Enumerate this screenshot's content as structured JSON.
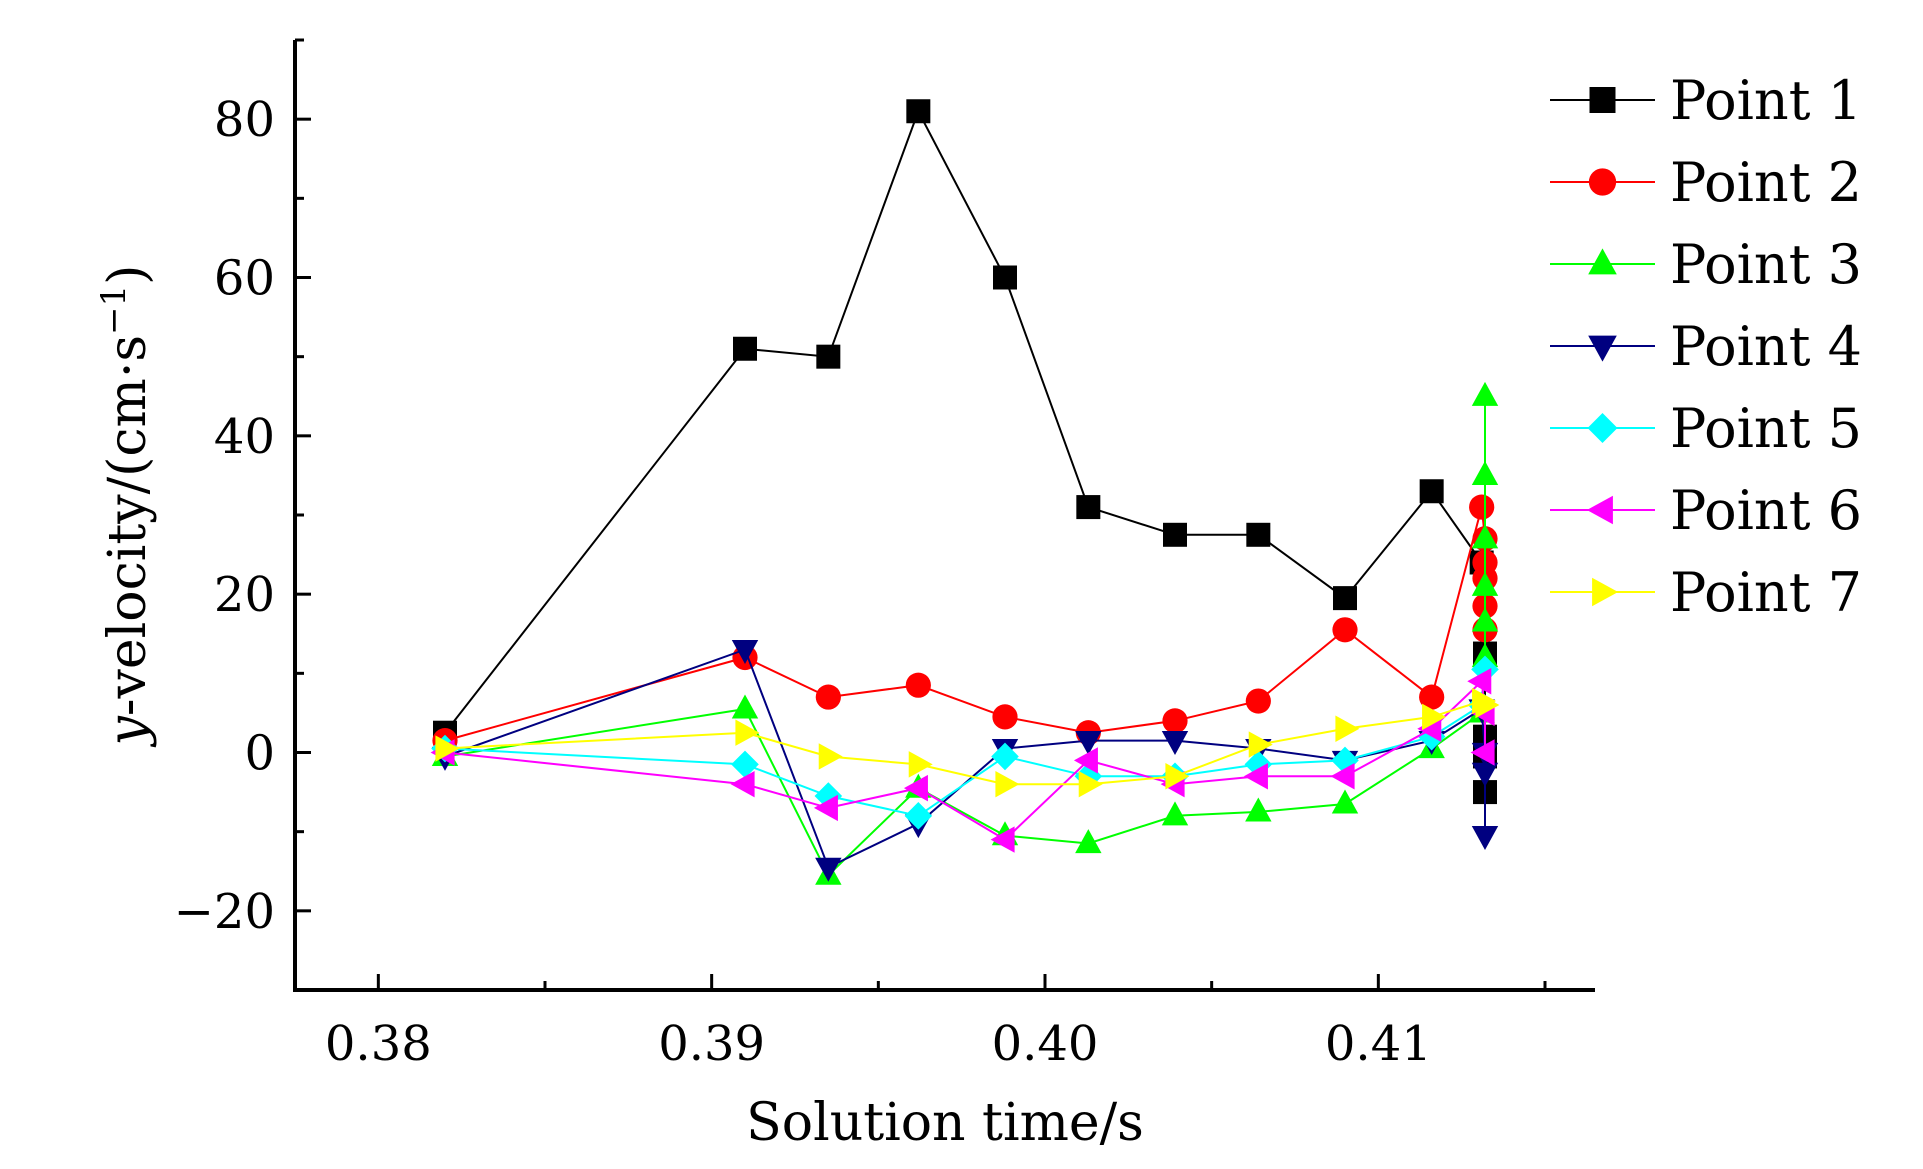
{
  "chart_data": {
    "type": "line",
    "xlabel": "Solution time/s",
    "ylabel": "y-velocity/(cm·s⁻¹)",
    "ylabel_parts": {
      "var": "y",
      "rest": "-velocity/(cm·s",
      "sup": "−1",
      "close": ")"
    },
    "xlim": [
      0.3775,
      0.4165
    ],
    "ylim": [
      -30,
      90
    ],
    "x_ticks": [
      0.38,
      0.39,
      0.4,
      0.41
    ],
    "x_tick_labels": [
      "0.38",
      "0.39",
      "0.40",
      "0.41"
    ],
    "y_ticks": [
      -20,
      0,
      20,
      40,
      60,
      80
    ],
    "y_tick_labels": [
      "−20",
      "0",
      "20",
      "40",
      "60",
      "80"
    ],
    "grid": false,
    "legend_position": "top-right",
    "series": [
      {
        "name": "Point 1",
        "color": "#000000",
        "marker": "square",
        "x": [
          0.382,
          0.391,
          0.3935,
          0.3962,
          0.3988,
          0.4013,
          0.4039,
          0.4064,
          0.409,
          0.4116,
          0.4131,
          0.4132,
          0.4132,
          0.4132,
          0.4132
        ],
        "y": [
          2.5,
          51,
          50,
          81,
          60,
          31,
          27.5,
          27.5,
          19.5,
          33,
          24,
          12.5,
          2,
          -0.5,
          -5
        ]
      },
      {
        "name": "Point 2",
        "color": "#ff0000",
        "marker": "circle",
        "x": [
          0.382,
          0.391,
          0.3935,
          0.3962,
          0.3988,
          0.4013,
          0.4039,
          0.4064,
          0.409,
          0.4116,
          0.4131,
          0.4132,
          0.4132,
          0.4132,
          0.4132,
          0.4132
        ],
        "y": [
          1.5,
          12,
          7,
          8.5,
          4.5,
          2.5,
          4,
          6.5,
          15.5,
          7,
          31,
          27,
          24,
          22,
          18.5,
          15.5
        ]
      },
      {
        "name": "Point 3",
        "color": "#00ff00",
        "marker": "triangle-up",
        "x": [
          0.382,
          0.391,
          0.3935,
          0.3962,
          0.3988,
          0.4013,
          0.4039,
          0.4064,
          0.409,
          0.4116,
          0.4131,
          0.4132,
          0.4132,
          0.4132,
          0.4132,
          0.4132,
          0.4132
        ],
        "y": [
          -0.5,
          5.5,
          -15.5,
          -4.5,
          -10.5,
          -11.5,
          -8,
          -7.5,
          -6.5,
          0.5,
          5,
          12,
          16.5,
          21,
          27,
          35,
          45
        ]
      },
      {
        "name": "Point 4",
        "color": "#000080",
        "marker": "triangle-down",
        "x": [
          0.382,
          0.391,
          0.3935,
          0.3962,
          0.3988,
          0.4013,
          0.4039,
          0.4064,
          0.409,
          0.4116,
          0.4131,
          0.4132,
          0.4132,
          0.4132
        ],
        "y": [
          -0.5,
          13,
          -14.5,
          -9,
          0.5,
          1.5,
          1.5,
          0.5,
          -1,
          1.5,
          5.5,
          0,
          -2.5,
          -10.5
        ]
      },
      {
        "name": "Point 5",
        "color": "#00ffff",
        "marker": "diamond",
        "x": [
          0.382,
          0.391,
          0.3935,
          0.3962,
          0.3988,
          0.4013,
          0.4039,
          0.4064,
          0.409,
          0.4116,
          0.4131,
          0.4132
        ],
        "y": [
          0.5,
          -1.5,
          -5.5,
          -8,
          -0.5,
          -3,
          -3,
          -1.5,
          -1,
          2,
          6,
          10.5
        ]
      },
      {
        "name": "Point 6",
        "color": "#ff00ff",
        "marker": "triangle-left",
        "x": [
          0.382,
          0.391,
          0.3935,
          0.3962,
          0.3988,
          0.4013,
          0.4039,
          0.4064,
          0.409,
          0.4116,
          0.4131,
          0.4132,
          0.4132
        ],
        "y": [
          0,
          -4,
          -7,
          -4.5,
          -11,
          -1,
          -4,
          -3,
          -3,
          3,
          9,
          5,
          0
        ]
      },
      {
        "name": "Point 7",
        "color": "#ffff00",
        "marker": "triangle-right",
        "x": [
          0.382,
          0.391,
          0.3935,
          0.3962,
          0.3988,
          0.4013,
          0.4039,
          0.4064,
          0.409,
          0.4116,
          0.4131,
          0.4132
        ],
        "y": [
          0.5,
          2.5,
          -0.5,
          -1.5,
          -4,
          -4,
          -3,
          1,
          3,
          4.5,
          6.5,
          6
        ]
      }
    ]
  }
}
